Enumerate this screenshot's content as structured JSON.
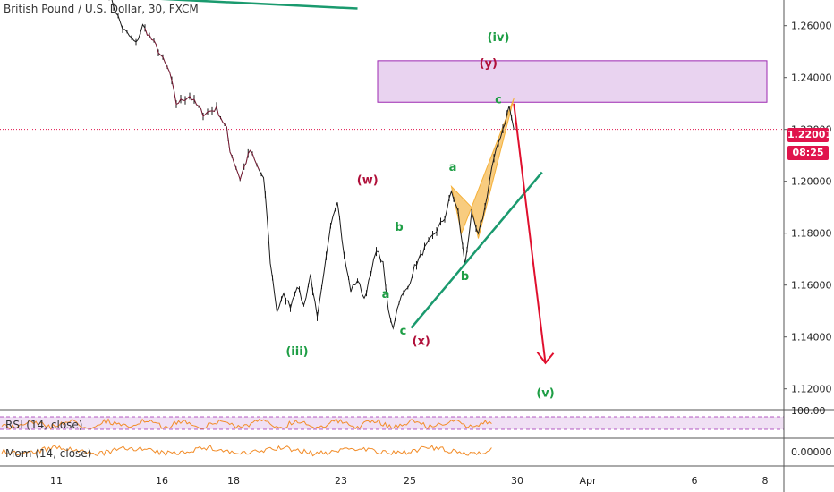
{
  "header": {
    "title": "British Pound / U.S. Dollar, 30, FXCM"
  },
  "price_badge": {
    "value": "1.22001",
    "countdown": "08:25"
  },
  "colors": {
    "price": "#e0144c",
    "green": "#1e9e45",
    "maroon": "#b0103a",
    "teal": "#1a9a6e",
    "arrow": "#e0102e",
    "zone_fill": "#e9d3f0",
    "zone_border": "#9c27b0",
    "osc": "#f28c28",
    "pattern": "#f5b13a"
  },
  "chart_data": {
    "type": "line",
    "title": "British Pound / U.S. Dollar, 30, FXCM",
    "xlabel": "",
    "ylabel": "",
    "x_ticks": [
      "11",
      "16",
      "18",
      "23",
      "25",
      "30",
      "Apr",
      "6",
      "8"
    ],
    "y_ticks": [
      "1.26000",
      "1.24000",
      "1.22000",
      "1.20000",
      "1.18000",
      "1.16000",
      "1.14000",
      "1.12000"
    ],
    "ylim": [
      1.113,
      1.273
    ],
    "grid": false,
    "current_price": 1.22001,
    "price_path": [
      [
        0,
        1.272
      ],
      [
        2,
        1.259
      ],
      [
        4,
        1.253
      ],
      [
        5,
        1.26
      ],
      [
        7,
        1.252
      ],
      [
        9,
        1.242
      ],
      [
        10,
        1.23
      ],
      [
        12,
        1.233
      ],
      [
        14,
        1.226
      ],
      [
        16,
        1.228
      ],
      [
        17.5,
        1.22
      ],
      [
        18,
        1.212
      ],
      [
        19.5,
        1.201
      ],
      [
        21,
        1.212
      ],
      [
        22,
        1.206
      ],
      [
        23,
        1.201
      ],
      [
        23.5,
        1.187
      ],
      [
        24,
        1.169
      ],
      [
        25,
        1.15
      ],
      [
        26,
        1.156
      ],
      [
        27,
        1.152
      ],
      [
        28,
        1.16
      ],
      [
        29,
        1.152
      ],
      [
        30,
        1.164
      ],
      [
        31,
        1.147
      ],
      [
        32,
        1.164
      ],
      [
        33,
        1.184
      ],
      [
        34,
        1.193
      ],
      [
        35,
        1.171
      ],
      [
        36,
        1.158
      ],
      [
        37,
        1.162
      ],
      [
        38,
        1.155
      ],
      [
        39,
        1.164
      ],
      [
        39.8,
        1.174
      ],
      [
        40.8,
        1.168
      ],
      [
        41.6,
        1.15
      ],
      [
        42.3,
        1.144
      ],
      [
        43.2,
        1.154
      ],
      [
        44.5,
        1.159
      ],
      [
        45.5,
        1.167
      ],
      [
        47,
        1.174
      ],
      [
        48.5,
        1.18
      ],
      [
        50,
        1.186
      ],
      [
        51,
        1.196
      ],
      [
        52,
        1.188
      ],
      [
        53,
        1.168
      ],
      [
        54,
        1.187
      ],
      [
        55,
        1.179
      ],
      [
        56,
        1.19
      ],
      [
        57,
        1.205
      ],
      [
        58,
        1.215
      ],
      [
        59,
        1.223
      ],
      [
        59.6,
        1.229
      ],
      [
        60.3,
        1.22
      ]
    ],
    "rsi": {
      "label": "RSI (14, close)",
      "level": "100.00",
      "band": [
        30,
        70
      ]
    },
    "momentum": {
      "label": "Mom (14, close)",
      "level": "0.00000"
    },
    "projection": {
      "from": [
        60.3,
        1.23
      ],
      "to": [
        65,
        1.13
      ]
    },
    "resistance_zone": {
      "x_start": 40,
      "x_end": 98,
      "y_top": 1.2465,
      "y_bottom": 1.2305
    },
    "trendlines": [
      {
        "from": [
          0,
          1.2713
        ],
        "to": [
          37,
          1.2666
        ]
      },
      {
        "from": [
          45,
          1.1435
        ],
        "to": [
          64.5,
          1.2035
        ]
      }
    ],
    "wave_labels": [
      {
        "text": "(iv)",
        "x": 58,
        "y": 1.254,
        "color": "green"
      },
      {
        "text": "(y)",
        "x": 56.5,
        "y": 1.244,
        "color": "maroon"
      },
      {
        "text": "c",
        "x": 58,
        "y": 1.23,
        "color": "green"
      },
      {
        "text": "a",
        "x": 51.2,
        "y": 1.204,
        "color": "green"
      },
      {
        "text": "(w)",
        "x": 38.5,
        "y": 1.199,
        "color": "maroon"
      },
      {
        "text": "b",
        "x": 43.2,
        "y": 1.181,
        "color": "green"
      },
      {
        "text": "b",
        "x": 53,
        "y": 1.162,
        "color": "green"
      },
      {
        "text": "a",
        "x": 41.2,
        "y": 1.155,
        "color": "green"
      },
      {
        "text": "c",
        "x": 43.8,
        "y": 1.141,
        "color": "green"
      },
      {
        "text": "(x)",
        "x": 46.5,
        "y": 1.137,
        "color": "maroon"
      },
      {
        "text": "(iii)",
        "x": 28,
        "y": 1.133,
        "color": "green"
      },
      {
        "text": "(v)",
        "x": 65,
        "y": 1.117,
        "color": "green"
      }
    ]
  }
}
